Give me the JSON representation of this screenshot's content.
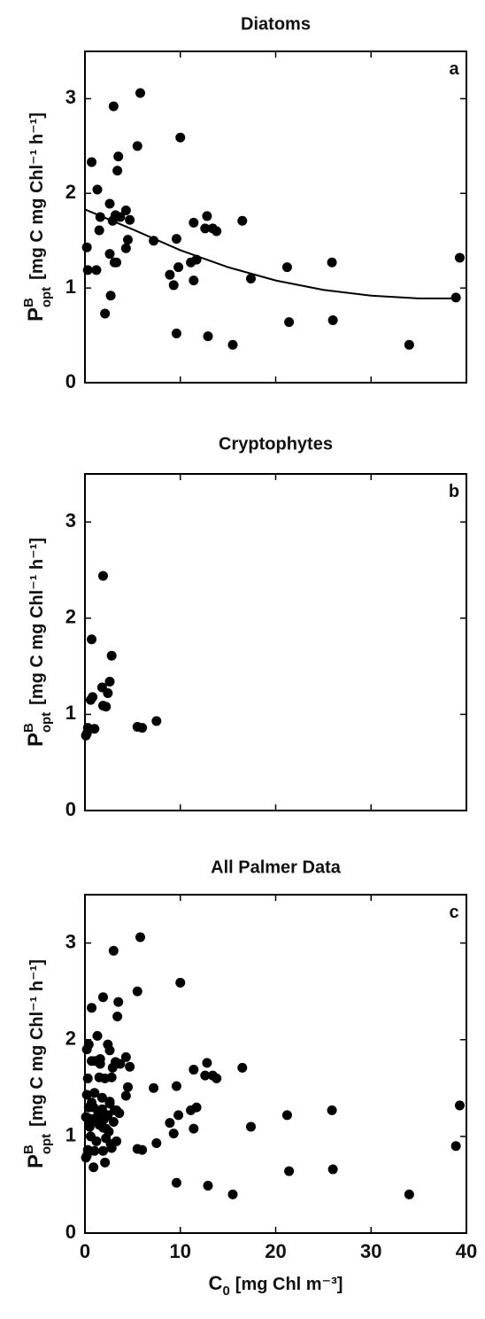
{
  "chart_data": [
    {
      "type": "scatter",
      "title": "Diatoms",
      "annotation": "a",
      "ylabel": "P",
      "ylabel_sup": "B",
      "ylabel_sub": "opt",
      "ylabel_units": "[mg C mg Chl⁻¹ h⁻¹]",
      "xlim": [
        0,
        40
      ],
      "ylim": [
        0,
        3.5
      ],
      "xticks": [
        0,
        10,
        20,
        30,
        40
      ],
      "yticks": [
        0,
        1,
        2,
        3
      ],
      "xtick_labels": false,
      "series": [
        {
          "type": "scatter",
          "color": "#000000",
          "x": [
            0.2,
            0.3,
            0.7,
            1.2,
            1.3,
            1.5,
            1.6,
            2.1,
            2.6,
            2.6,
            2.7,
            3.0,
            2.9,
            3.1,
            3.2,
            3.3,
            3.4,
            3.5,
            3.7,
            4.3,
            4.3,
            4.5,
            4.7,
            5.5,
            5.8,
            7.2,
            8.9,
            9.3,
            9.6,
            9.6,
            9.8,
            10.0,
            11.1,
            11.4,
            11.4,
            11.7,
            12.6,
            12.8,
            12.9,
            13.4,
            13.8,
            15.5,
            16.5,
            17.4,
            21.2,
            21.4,
            25.9,
            26.0,
            34.0,
            38.9,
            39.3
          ],
          "values": [
            1.43,
            1.19,
            2.33,
            1.19,
            2.04,
            1.61,
            1.75,
            0.73,
            1.36,
            1.89,
            0.92,
            2.92,
            1.71,
            1.27,
            1.77,
            1.27,
            2.24,
            2.39,
            1.75,
            1.42,
            1.82,
            1.51,
            1.72,
            2.5,
            3.06,
            1.5,
            1.14,
            1.03,
            0.52,
            1.52,
            1.22,
            2.59,
            1.27,
            1.69,
            1.08,
            1.3,
            1.63,
            1.76,
            0.49,
            1.63,
            1.6,
            0.4,
            1.71,
            1.1,
            1.22,
            0.64,
            1.27,
            0.66,
            0.4,
            0.9,
            1.32
          ]
        },
        {
          "type": "line",
          "color": "#000000",
          "x": [
            0,
            5,
            10,
            15,
            20,
            25,
            30,
            35,
            39
          ],
          "values": [
            1.83,
            1.62,
            1.4,
            1.22,
            1.08,
            0.98,
            0.92,
            0.89,
            0.89
          ]
        }
      ]
    },
    {
      "type": "scatter",
      "title": "Cryptophytes",
      "annotation": "b",
      "ylabel": "P",
      "ylabel_sup": "B",
      "ylabel_sub": "opt",
      "ylabel_units": "[mg C mg Chl⁻¹ h⁻¹]",
      "xlim": [
        0,
        40
      ],
      "ylim": [
        0,
        3.5
      ],
      "xticks": [
        0,
        10,
        20,
        30,
        40
      ],
      "yticks": [
        0,
        1,
        2,
        3
      ],
      "xtick_labels": false,
      "series": [
        {
          "type": "scatter",
          "color": "#000000",
          "x": [
            0.1,
            0.2,
            0.3,
            0.6,
            0.7,
            0.8,
            1.0,
            1.8,
            1.9,
            1.9,
            2.2,
            2.4,
            2.6,
            2.8,
            5.5,
            6.0,
            7.5
          ],
          "values": [
            0.78,
            0.8,
            0.86,
            1.15,
            1.78,
            1.18,
            0.85,
            1.28,
            2.44,
            1.09,
            1.08,
            1.22,
            1.34,
            1.61,
            0.87,
            0.86,
            0.93
          ]
        }
      ]
    },
    {
      "type": "scatter",
      "title": "All Palmer Data",
      "annotation": "c",
      "ylabel": "P",
      "ylabel_sup": "B",
      "ylabel_sub": "opt",
      "ylabel_units": "[mg C mg Chl⁻¹ h⁻¹]",
      "xlabel": "C",
      "xlabel_sub": "0",
      "xlabel_units": "[mg Chl m⁻³]",
      "xlim": [
        0,
        40
      ],
      "ylim": [
        0,
        3.5
      ],
      "xticks": [
        0,
        10,
        20,
        30,
        40
      ],
      "yticks": [
        0,
        1,
        2,
        3
      ],
      "xtick_labels": true,
      "series": [
        {
          "type": "scatter",
          "color": "#000000",
          "x": [
            0.2,
            0.3,
            0.7,
            1.2,
            1.3,
            1.5,
            1.6,
            2.1,
            2.6,
            2.6,
            2.7,
            3.0,
            2.9,
            3.1,
            3.2,
            3.3,
            3.4,
            3.5,
            3.7,
            4.3,
            4.3,
            4.5,
            4.7,
            5.5,
            5.8,
            7.2,
            8.9,
            9.3,
            9.6,
            9.6,
            9.8,
            10.0,
            11.1,
            11.4,
            11.4,
            11.7,
            12.6,
            12.8,
            12.9,
            13.4,
            13.8,
            15.5,
            16.5,
            17.4,
            21.2,
            21.4,
            25.9,
            26.0,
            34.0,
            38.9,
            39.3,
            0.1,
            0.2,
            0.3,
            0.6,
            0.7,
            0.8,
            1.0,
            1.8,
            1.9,
            1.9,
            2.2,
            2.4,
            2.6,
            2.8,
            5.5,
            6.0,
            7.5,
            0.2,
            0.4,
            0.5,
            0.6,
            0.9,
            0.9,
            1.0,
            1.2,
            1.4,
            1.5,
            1.6,
            1.8,
            2.0,
            2.2,
            2.4,
            2.5,
            3.0,
            3.3,
            0.3,
            0.7,
            1.9,
            2.8,
            3.6,
            2.1,
            1.1,
            0.1,
            0.4
          ],
          "values": [
            1.43,
            1.19,
            2.33,
            1.19,
            2.04,
            1.61,
            1.75,
            0.73,
            1.36,
            1.89,
            0.92,
            2.92,
            1.71,
            1.27,
            1.77,
            1.27,
            2.24,
            2.39,
            1.75,
            1.42,
            1.82,
            1.51,
            1.72,
            2.5,
            3.06,
            1.5,
            1.14,
            1.03,
            0.52,
            1.52,
            1.22,
            2.59,
            1.27,
            1.69,
            1.08,
            1.3,
            1.63,
            1.76,
            0.49,
            1.63,
            1.6,
            0.4,
            1.71,
            1.1,
            1.22,
            0.64,
            1.27,
            0.66,
            0.4,
            0.9,
            1.32,
            0.78,
            0.8,
            0.86,
            1.15,
            1.78,
            1.18,
            0.85,
            1.28,
            2.44,
            1.09,
            1.08,
            1.22,
            1.34,
            1.61,
            0.87,
            0.86,
            0.93,
            1.9,
            1.95,
            1.1,
            1.0,
            0.68,
            1.3,
            1.45,
            0.95,
            1.25,
            1.12,
            1.8,
            1.4,
            1.18,
            0.98,
            1.95,
            1.05,
            1.15,
            0.95,
            1.6,
            1.35,
            0.85,
            0.88,
            1.24,
            1.6,
            1.78,
            1.2,
            1.3
          ]
        }
      ]
    }
  ]
}
